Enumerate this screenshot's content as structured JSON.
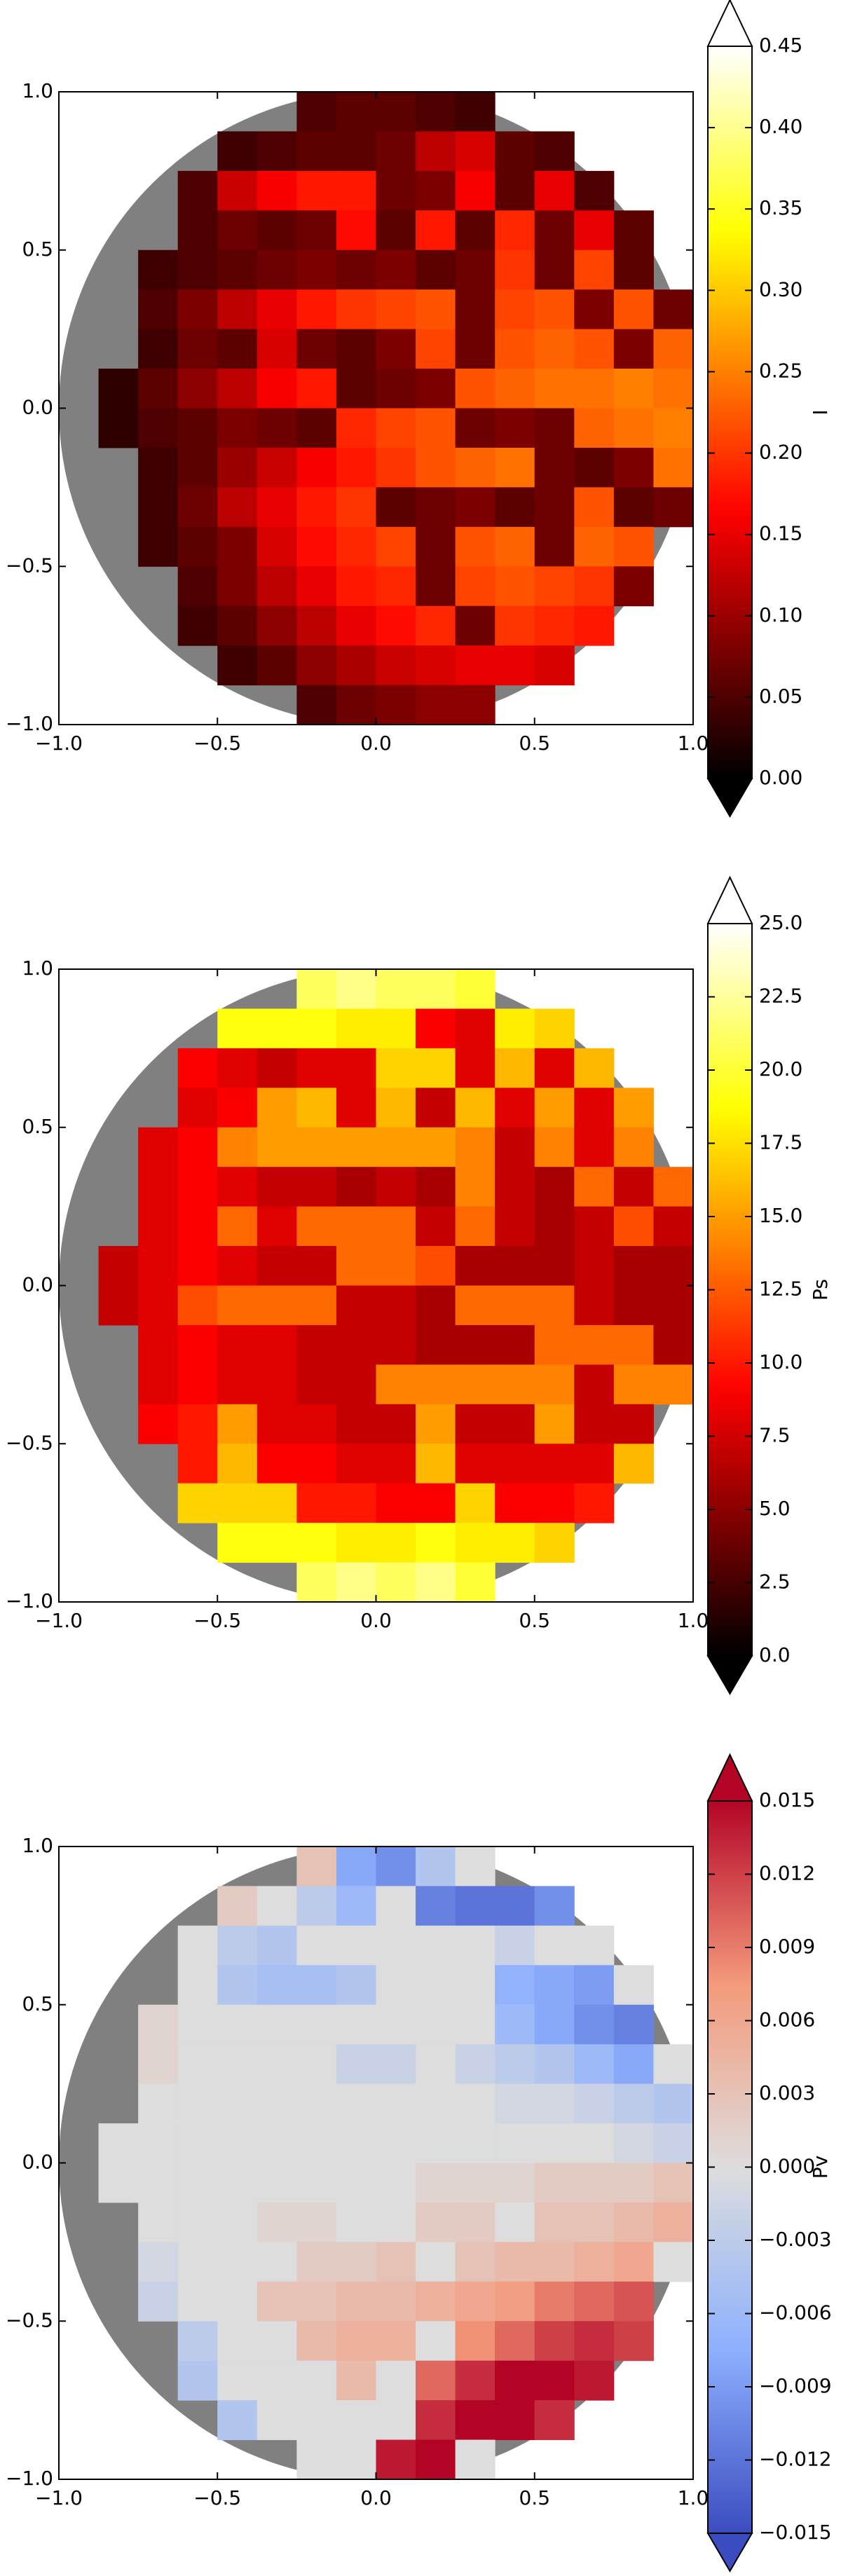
{
  "chart_data": [
    {
      "type": "heatmap",
      "colormap": "hot",
      "disk_color": "#808080",
      "x": [
        -0.9375,
        -0.8125,
        -0.6875,
        -0.5625,
        -0.4375,
        -0.3125,
        -0.1875,
        -0.0625,
        0.0625,
        0.1875,
        0.3125,
        0.4375,
        0.5625,
        0.6875,
        0.8125,
        0.9375
      ],
      "y": [
        0.9375,
        0.8125,
        0.6875,
        0.5625,
        0.4375,
        0.3125,
        0.1875,
        0.0625,
        -0.0625,
        -0.1875,
        -0.3125,
        -0.4375,
        -0.5625,
        -0.6875,
        -0.8125,
        -0.9375
      ],
      "xlim": [
        -1,
        1
      ],
      "ylim": [
        -1,
        1
      ],
      "xticks": [
        {
          "value": -1,
          "label": "−1.0"
        },
        {
          "value": -0.5,
          "label": "−0.5"
        },
        {
          "value": 0,
          "label": "0.0"
        },
        {
          "value": 0.5,
          "label": "0.5"
        },
        {
          "value": 1,
          "label": "1.0"
        }
      ],
      "yticks": [
        {
          "value": -1,
          "label": "−1.0"
        },
        {
          "value": -0.5,
          "label": "−0.5"
        },
        {
          "value": 0,
          "label": "0.0"
        },
        {
          "value": 0.5,
          "label": "0.5"
        },
        {
          "value": 1,
          "label": "1.0"
        }
      ],
      "colorbar": {
        "label": "I",
        "lim": [
          0,
          0.45
        ],
        "extend": "both",
        "ticks": [
          {
            "value": 0,
            "label": "0.00"
          },
          {
            "value": 0.05,
            "label": "0.05"
          },
          {
            "value": 0.1,
            "label": "0.10"
          },
          {
            "value": 0.15,
            "label": "0.15"
          },
          {
            "value": 0.2,
            "label": "0.20"
          },
          {
            "value": 0.25,
            "label": "0.25"
          },
          {
            "value": 0.3,
            "label": "0.30"
          },
          {
            "value": 0.35,
            "label": "0.35"
          },
          {
            "value": 0.4,
            "label": "0.40"
          },
          {
            "value": 0.45,
            "label": "0.45"
          }
        ]
      },
      "values": [
        [
          null,
          null,
          null,
          null,
          null,
          null,
          0.05,
          0.06,
          0.06,
          0.05,
          0.04,
          null,
          null,
          null,
          null,
          null
        ],
        [
          null,
          null,
          null,
          null,
          0.04,
          0.05,
          0.06,
          0.06,
          0.07,
          0.12,
          0.14,
          0.06,
          0.05,
          null,
          null,
          null
        ],
        [
          null,
          null,
          null,
          0.05,
          0.13,
          0.16,
          0.18,
          0.18,
          0.07,
          0.08,
          0.16,
          0.06,
          0.15,
          0.05,
          null,
          null
        ],
        [
          null,
          null,
          null,
          0.05,
          0.07,
          0.06,
          0.07,
          0.17,
          0.06,
          0.18,
          0.06,
          0.19,
          0.07,
          0.15,
          0.06,
          null
        ],
        [
          null,
          null,
          0.04,
          0.05,
          0.06,
          0.07,
          0.08,
          0.07,
          0.08,
          0.06,
          0.07,
          0.2,
          0.07,
          0.21,
          0.06,
          null
        ],
        [
          null,
          null,
          0.05,
          0.08,
          0.12,
          0.15,
          0.18,
          0.2,
          0.21,
          0.22,
          0.07,
          0.21,
          0.22,
          0.08,
          0.22,
          0.07
        ],
        [
          null,
          null,
          0.04,
          0.07,
          0.06,
          0.14,
          0.07,
          0.06,
          0.08,
          0.21,
          0.07,
          0.22,
          0.23,
          0.22,
          0.08,
          0.23
        ],
        [
          null,
          0.03,
          0.06,
          0.09,
          0.12,
          0.16,
          0.18,
          0.06,
          0.07,
          0.08,
          0.22,
          0.23,
          0.24,
          0.24,
          0.25,
          0.24
        ],
        [
          null,
          0.03,
          0.05,
          0.06,
          0.08,
          0.07,
          0.06,
          0.19,
          0.21,
          0.22,
          0.07,
          0.08,
          0.07,
          0.23,
          0.24,
          0.25
        ],
        [
          null,
          null,
          0.04,
          0.06,
          0.1,
          0.13,
          0.16,
          0.18,
          0.2,
          0.22,
          0.23,
          0.24,
          0.07,
          0.06,
          0.08,
          0.24
        ],
        [
          null,
          null,
          0.04,
          0.07,
          0.12,
          0.15,
          0.18,
          0.2,
          0.06,
          0.07,
          0.08,
          0.06,
          0.07,
          0.22,
          0.06,
          0.07
        ],
        [
          null,
          null,
          0.04,
          0.06,
          0.08,
          0.14,
          0.17,
          0.19,
          0.21,
          0.07,
          0.22,
          0.23,
          0.07,
          0.23,
          0.22,
          null
        ],
        [
          null,
          null,
          null,
          0.05,
          0.08,
          0.12,
          0.15,
          0.18,
          0.19,
          0.07,
          0.21,
          0.22,
          0.21,
          0.2,
          0.08,
          null
        ],
        [
          null,
          null,
          null,
          0.04,
          0.06,
          0.09,
          0.12,
          0.15,
          0.17,
          0.19,
          0.07,
          0.2,
          0.19,
          0.18,
          null,
          null
        ],
        [
          null,
          null,
          null,
          null,
          0.04,
          0.06,
          0.09,
          0.11,
          0.13,
          0.14,
          0.15,
          0.15,
          0.14,
          null,
          null,
          null
        ],
        [
          null,
          null,
          null,
          null,
          null,
          null,
          0.05,
          0.07,
          0.08,
          0.09,
          0.09,
          null,
          null,
          null,
          null,
          null
        ]
      ]
    },
    {
      "type": "heatmap",
      "colormap": "hot",
      "disk_color": "#808080",
      "x": [
        -0.9375,
        -0.8125,
        -0.6875,
        -0.5625,
        -0.4375,
        -0.3125,
        -0.1875,
        -0.0625,
        0.0625,
        0.1875,
        0.3125,
        0.4375,
        0.5625,
        0.6875,
        0.8125,
        0.9375
      ],
      "y": [
        0.9375,
        0.8125,
        0.6875,
        0.5625,
        0.4375,
        0.3125,
        0.1875,
        0.0625,
        -0.0625,
        -0.1875,
        -0.3125,
        -0.4375,
        -0.5625,
        -0.6875,
        -0.8125,
        -0.9375
      ],
      "xlim": [
        -1,
        1
      ],
      "ylim": [
        -1,
        1
      ],
      "xticks": [
        {
          "value": -1,
          "label": "−1.0"
        },
        {
          "value": -0.5,
          "label": "−0.5"
        },
        {
          "value": 0,
          "label": "0.0"
        },
        {
          "value": 0.5,
          "label": "0.5"
        },
        {
          "value": 1,
          "label": "1.0"
        }
      ],
      "yticks": [
        {
          "value": -1,
          "label": "−1.0"
        },
        {
          "value": -0.5,
          "label": "−0.5"
        },
        {
          "value": 0,
          "label": "0.0"
        },
        {
          "value": 0.5,
          "label": "0.5"
        },
        {
          "value": 1,
          "label": "1.0"
        }
      ],
      "colorbar": {
        "label": "Ps",
        "lim": [
          0,
          25
        ],
        "extend": "both",
        "ticks": [
          {
            "value": 0,
            "label": "0.0"
          },
          2.5,
          {
            "value": 5,
            "label": "5.0"
          },
          7.5,
          {
            "value": 10,
            "label": "10.0"
          },
          12.5,
          {
            "value": 15,
            "label": "15.0"
          },
          17.5,
          {
            "value": 20,
            "label": "20.0"
          },
          22.5,
          {
            "value": 25,
            "label": "25.0"
          }
        ]
      },
      "values": [
        [
          null,
          null,
          null,
          null,
          null,
          null,
          21,
          22,
          21,
          21,
          20,
          null,
          null,
          null,
          null,
          null
        ],
        [
          null,
          null,
          null,
          null,
          19,
          19,
          19,
          18,
          18,
          9,
          8,
          18,
          17,
          null,
          null,
          null
        ],
        [
          null,
          null,
          null,
          9,
          8,
          7,
          8,
          8,
          17,
          17,
          8,
          16,
          8,
          16,
          null,
          null
        ],
        [
          null,
          null,
          null,
          8,
          9,
          15,
          16,
          8,
          16,
          7,
          16,
          8,
          15,
          8,
          15,
          null
        ],
        [
          null,
          null,
          8,
          9,
          14,
          15,
          15,
          15,
          15,
          15,
          14,
          7,
          14,
          8,
          14,
          null
        ],
        [
          null,
          null,
          8,
          9,
          8,
          7,
          7,
          6,
          7,
          6,
          14,
          7,
          6,
          13,
          7,
          13
        ],
        [
          null,
          null,
          8,
          9,
          13,
          8,
          13,
          13,
          13,
          7,
          13,
          7,
          6,
          7,
          12,
          7
        ],
        [
          null,
          7,
          8,
          9,
          8,
          7,
          7,
          13,
          13,
          12,
          6,
          6,
          6,
          7,
          6,
          6
        ],
        [
          null,
          7,
          8,
          12,
          13,
          13,
          13,
          7,
          7,
          6,
          13,
          13,
          13,
          7,
          6,
          6
        ],
        [
          null,
          null,
          8,
          9,
          8,
          8,
          7,
          7,
          7,
          6,
          6,
          6,
          13,
          13,
          13,
          6
        ],
        [
          null,
          null,
          8,
          9,
          8,
          8,
          7,
          7,
          14,
          14,
          14,
          14,
          14,
          7,
          14,
          14
        ],
        [
          null,
          null,
          9,
          10,
          15,
          8,
          8,
          7,
          7,
          15,
          7,
          7,
          15,
          7,
          7,
          null
        ],
        [
          null,
          null,
          null,
          10,
          16,
          9,
          9,
          8,
          8,
          16,
          8,
          8,
          8,
          8,
          16,
          null
        ],
        [
          null,
          null,
          null,
          17,
          17,
          17,
          10,
          10,
          9,
          9,
          17,
          9,
          9,
          10,
          null,
          null
        ],
        [
          null,
          null,
          null,
          null,
          19,
          19,
          19,
          18,
          18,
          19,
          18,
          18,
          17,
          null,
          null,
          null
        ],
        [
          null,
          null,
          null,
          null,
          null,
          null,
          21,
          22,
          21,
          22,
          20,
          null,
          null,
          null,
          null,
          null
        ]
      ]
    },
    {
      "type": "heatmap",
      "colormap": "coolwarm",
      "disk_color": "#808080",
      "x": [
        -0.9375,
        -0.8125,
        -0.6875,
        -0.5625,
        -0.4375,
        -0.3125,
        -0.1875,
        -0.0625,
        0.0625,
        0.1875,
        0.3125,
        0.4375,
        0.5625,
        0.6875,
        0.8125,
        0.9375
      ],
      "y": [
        0.9375,
        0.8125,
        0.6875,
        0.5625,
        0.4375,
        0.3125,
        0.1875,
        0.0625,
        -0.0625,
        -0.1875,
        -0.3125,
        -0.4375,
        -0.5625,
        -0.6875,
        -0.8125,
        -0.9375
      ],
      "xlim": [
        -1,
        1
      ],
      "ylim": [
        -1,
        1
      ],
      "xticks": [
        {
          "value": -1,
          "label": "−1.0"
        },
        {
          "value": -0.5,
          "label": "−0.5"
        },
        {
          "value": 0,
          "label": "0.0"
        },
        {
          "value": 0.5,
          "label": "0.5"
        },
        {
          "value": 1,
          "label": "1.0"
        }
      ],
      "yticks": [
        {
          "value": -1,
          "label": "−1.0"
        },
        {
          "value": -0.5,
          "label": "−0.5"
        },
        {
          "value": 0,
          "label": "0.0"
        },
        {
          "value": 0.5,
          "label": "0.5"
        },
        {
          "value": 1,
          "label": "1.0"
        }
      ],
      "colorbar": {
        "label": "Pv",
        "lim": [
          -0.015,
          0.015
        ],
        "extend": "both",
        "ticks": [
          {
            "value": -0.015,
            "label": "−0.015"
          },
          {
            "value": -0.012,
            "label": "−0.012"
          },
          {
            "value": -0.009,
            "label": "−0.009"
          },
          {
            "value": -0.006,
            "label": "−0.006"
          },
          {
            "value": -0.003,
            "label": "−0.003"
          },
          {
            "value": 0,
            "label": "0.000"
          },
          0.003,
          0.006,
          0.009,
          0.012,
          0.015
        ]
      },
      "values": [
        [
          null,
          null,
          null,
          null,
          null,
          null,
          0.003,
          -0.008,
          -0.01,
          -0.004,
          0,
          null,
          null,
          null,
          null,
          null
        ],
        [
          null,
          null,
          null,
          null,
          0.002,
          0,
          -0.003,
          -0.006,
          0,
          -0.011,
          -0.012,
          -0.012,
          -0.01,
          null,
          null,
          null
        ],
        [
          null,
          null,
          null,
          0,
          -0.003,
          -0.004,
          0,
          0,
          0,
          0,
          0,
          -0.002,
          0,
          0,
          null,
          null
        ],
        [
          null,
          null,
          null,
          0,
          -0.004,
          -0.005,
          -0.005,
          -0.004,
          0,
          0,
          0,
          -0.007,
          -0.008,
          -0.009,
          0,
          null
        ],
        [
          null,
          null,
          0.001,
          0,
          0,
          0,
          0,
          0,
          0,
          0,
          0,
          -0.006,
          -0.008,
          -0.01,
          -0.011,
          null
        ],
        [
          null,
          null,
          0.001,
          0,
          0,
          0,
          0,
          -0.002,
          -0.002,
          0,
          -0.002,
          -0.003,
          -0.004,
          -0.006,
          -0.008,
          0
        ],
        [
          null,
          null,
          0,
          0,
          0,
          0,
          0,
          0,
          0,
          0,
          0,
          -0.001,
          -0.001,
          -0.002,
          -0.003,
          -0.004
        ],
        [
          null,
          0,
          0,
          0,
          0,
          0,
          0,
          0,
          0,
          0,
          0,
          0,
          0,
          0,
          -0.001,
          -0.002
        ],
        [
          null,
          0,
          0,
          0,
          0,
          0,
          0,
          0,
          0,
          0.001,
          0.001,
          0.001,
          0.002,
          0.002,
          0.002,
          0.003
        ],
        [
          null,
          null,
          0,
          0,
          0,
          0.001,
          0.001,
          0,
          0,
          0.002,
          0.002,
          0,
          0.003,
          0.003,
          0.004,
          0.005
        ],
        [
          null,
          null,
          -0.001,
          0,
          0,
          0,
          0.002,
          0.002,
          0.003,
          0,
          0.003,
          0.004,
          0.004,
          0.005,
          0.006,
          0
        ],
        [
          null,
          null,
          -0.002,
          0,
          0,
          0.003,
          0.003,
          0.004,
          0.004,
          0.005,
          0.006,
          0.007,
          0.009,
          0.01,
          0.011,
          null
        ],
        [
          null,
          null,
          null,
          -0.003,
          0,
          0,
          0.004,
          0.005,
          0.005,
          0,
          0.008,
          0.01,
          0.012,
          0.013,
          0.012,
          null
        ],
        [
          null,
          null,
          null,
          -0.004,
          0,
          0,
          0,
          0.004,
          0,
          0.01,
          0.013,
          0.015,
          0.015,
          0.014,
          null,
          null
        ],
        [
          null,
          null,
          null,
          null,
          -0.004,
          0,
          0,
          0,
          0,
          0.013,
          0.015,
          0.015,
          0.013,
          null,
          null,
          null
        ],
        [
          null,
          null,
          null,
          null,
          null,
          null,
          0,
          0,
          0.014,
          0.015,
          0,
          null,
          null,
          null,
          null,
          null
        ]
      ]
    }
  ]
}
